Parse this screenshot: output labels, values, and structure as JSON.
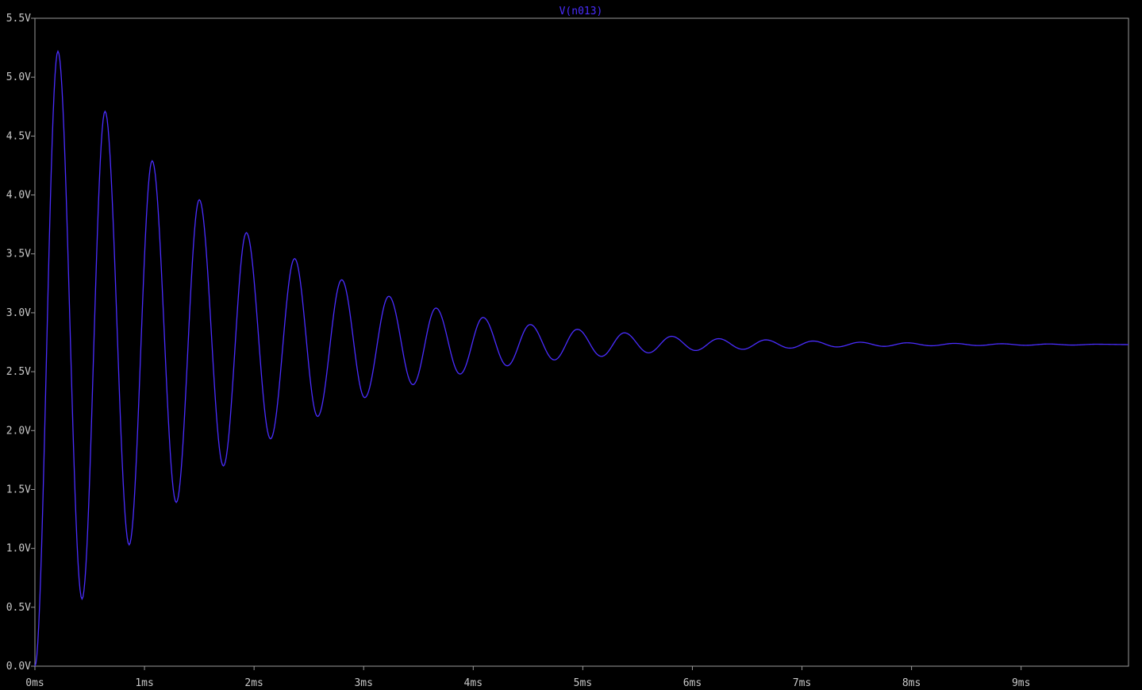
{
  "window_title": "V(n013)",
  "colors": {
    "background": "#000000",
    "frame": "#9a9a9a",
    "tick_label": "#c8c8c8",
    "trace": "#4a2dff"
  },
  "chart_data": {
    "type": "line",
    "title": "V(n013)",
    "xlabel": "",
    "ylabel": "",
    "grid": false,
    "xlim": [
      0,
      9.98
    ],
    "ylim": [
      0,
      5.5
    ],
    "x_ticks": [
      0,
      1,
      2,
      3,
      4,
      5,
      6,
      7,
      8,
      9
    ],
    "x_tick_labels": [
      "0ms",
      "1ms",
      "2ms",
      "3ms",
      "4ms",
      "5ms",
      "6ms",
      "7ms",
      "8ms",
      "9ms"
    ],
    "y_ticks": [
      0,
      0.5,
      1.0,
      1.5,
      2.0,
      2.5,
      3.0,
      3.5,
      4.0,
      4.5,
      5.0,
      5.5
    ],
    "y_tick_labels": [
      "0.0V",
      "0.5V",
      "1.0V",
      "1.5V",
      "2.0V",
      "2.5V",
      "3.0V",
      "3.5V",
      "4.0V",
      "4.5V",
      "5.0V",
      "5.5V"
    ],
    "series": [
      {
        "name": "V(n013)",
        "peaks": [
          [
            0.21,
            5.22
          ],
          [
            0.64,
            4.71
          ],
          [
            1.07,
            4.29
          ],
          [
            1.5,
            3.96
          ],
          [
            1.93,
            3.68
          ],
          [
            2.37,
            3.46
          ],
          [
            2.8,
            3.28
          ],
          [
            3.23,
            3.14
          ],
          [
            3.66,
            3.04
          ],
          [
            4.09,
            2.96
          ],
          [
            4.52,
            2.9
          ],
          [
            4.95,
            2.86
          ],
          [
            5.38,
            2.83
          ],
          [
            5.81,
            2.8
          ],
          [
            6.24,
            2.78
          ],
          [
            6.67,
            2.77
          ],
          [
            7.1,
            2.76
          ],
          [
            7.53,
            2.75
          ],
          [
            7.96,
            2.745
          ],
          [
            8.39,
            2.74
          ],
          [
            8.82,
            2.737
          ],
          [
            9.25,
            2.735
          ],
          [
            9.68,
            2.733
          ]
        ],
        "troughs": [
          [
            0.0,
            0.0
          ],
          [
            0.43,
            0.57
          ],
          [
            0.86,
            1.03
          ],
          [
            1.29,
            1.39
          ],
          [
            1.72,
            1.7
          ],
          [
            2.15,
            1.93
          ],
          [
            2.58,
            2.12
          ],
          [
            3.01,
            2.28
          ],
          [
            3.45,
            2.39
          ],
          [
            3.88,
            2.48
          ],
          [
            4.31,
            2.55
          ],
          [
            4.74,
            2.6
          ],
          [
            5.17,
            2.63
          ],
          [
            5.6,
            2.66
          ],
          [
            6.03,
            2.68
          ],
          [
            6.46,
            2.69
          ],
          [
            6.89,
            2.7
          ],
          [
            7.32,
            2.71
          ],
          [
            7.75,
            2.715
          ],
          [
            8.18,
            2.72
          ],
          [
            8.61,
            2.722
          ],
          [
            9.04,
            2.724
          ],
          [
            9.47,
            2.726
          ],
          [
            9.98,
            2.73
          ]
        ],
        "final_value": 2.73
      }
    ]
  }
}
